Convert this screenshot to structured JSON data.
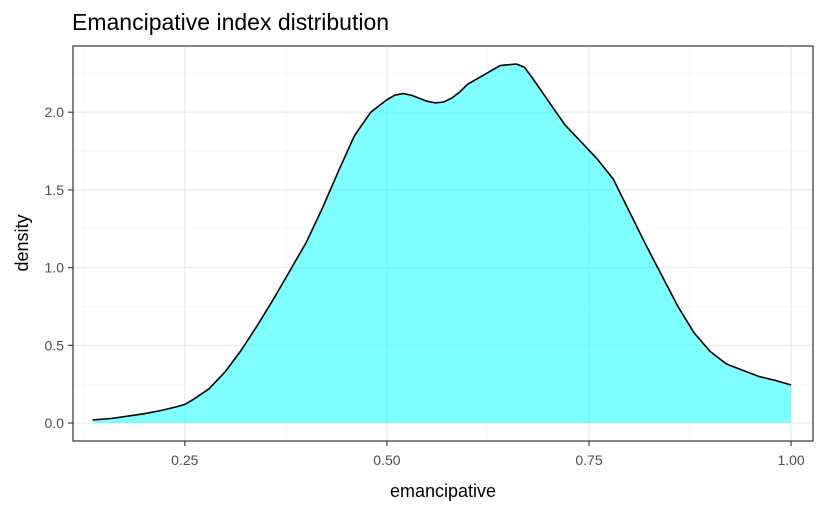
{
  "chart_data": {
    "type": "area",
    "title": "Emancipative index distribution",
    "xlabel": "emancipative",
    "ylabel": "density",
    "xlim": [
      0.1117,
      1.0271
    ],
    "ylim": [
      -0.1155,
      2.4259
    ],
    "xticks": [
      0.25,
      0.5,
      0.75,
      1.0
    ],
    "xtick_labels": [
      "0.25",
      "0.50",
      "0.75",
      "1.00"
    ],
    "yticks": [
      0.0,
      0.5,
      1.0,
      1.5,
      2.0
    ],
    "ytick_labels": [
      "0.0",
      "0.5",
      "1.0",
      "1.5",
      "2.0"
    ],
    "grid": true,
    "legend": "none",
    "colors": {
      "fill": "#00FFFF",
      "fill_opacity": 0.5,
      "line": "#000000",
      "panel_border": "#333333",
      "grid_major": "#EBEBEB",
      "grid_minor": "#F5F5F5"
    },
    "series": [
      {
        "x": [
          0.136,
          0.16,
          0.18,
          0.2,
          0.22,
          0.24,
          0.25,
          0.26,
          0.28,
          0.3,
          0.32,
          0.34,
          0.36,
          0.38,
          0.4,
          0.42,
          0.44,
          0.46,
          0.48,
          0.5,
          0.51,
          0.52,
          0.53,
          0.54,
          0.55,
          0.56,
          0.57,
          0.58,
          0.59,
          0.6,
          0.62,
          0.64,
          0.66,
          0.67,
          0.68,
          0.7,
          0.72,
          0.74,
          0.76,
          0.78,
          0.8,
          0.82,
          0.84,
          0.86,
          0.88,
          0.9,
          0.92,
          0.94,
          0.96,
          0.98,
          1.0
        ],
        "y": [
          0.02,
          0.03,
          0.045,
          0.06,
          0.08,
          0.105,
          0.12,
          0.15,
          0.22,
          0.33,
          0.47,
          0.63,
          0.8,
          0.98,
          1.16,
          1.38,
          1.62,
          1.85,
          2.0,
          2.08,
          2.11,
          2.12,
          2.11,
          2.09,
          2.07,
          2.06,
          2.065,
          2.09,
          2.13,
          2.18,
          2.24,
          2.3,
          2.31,
          2.29,
          2.22,
          2.07,
          1.92,
          1.81,
          1.7,
          1.57,
          1.36,
          1.15,
          0.95,
          0.75,
          0.58,
          0.46,
          0.38,
          0.34,
          0.3,
          0.275,
          0.245
        ]
      }
    ]
  }
}
